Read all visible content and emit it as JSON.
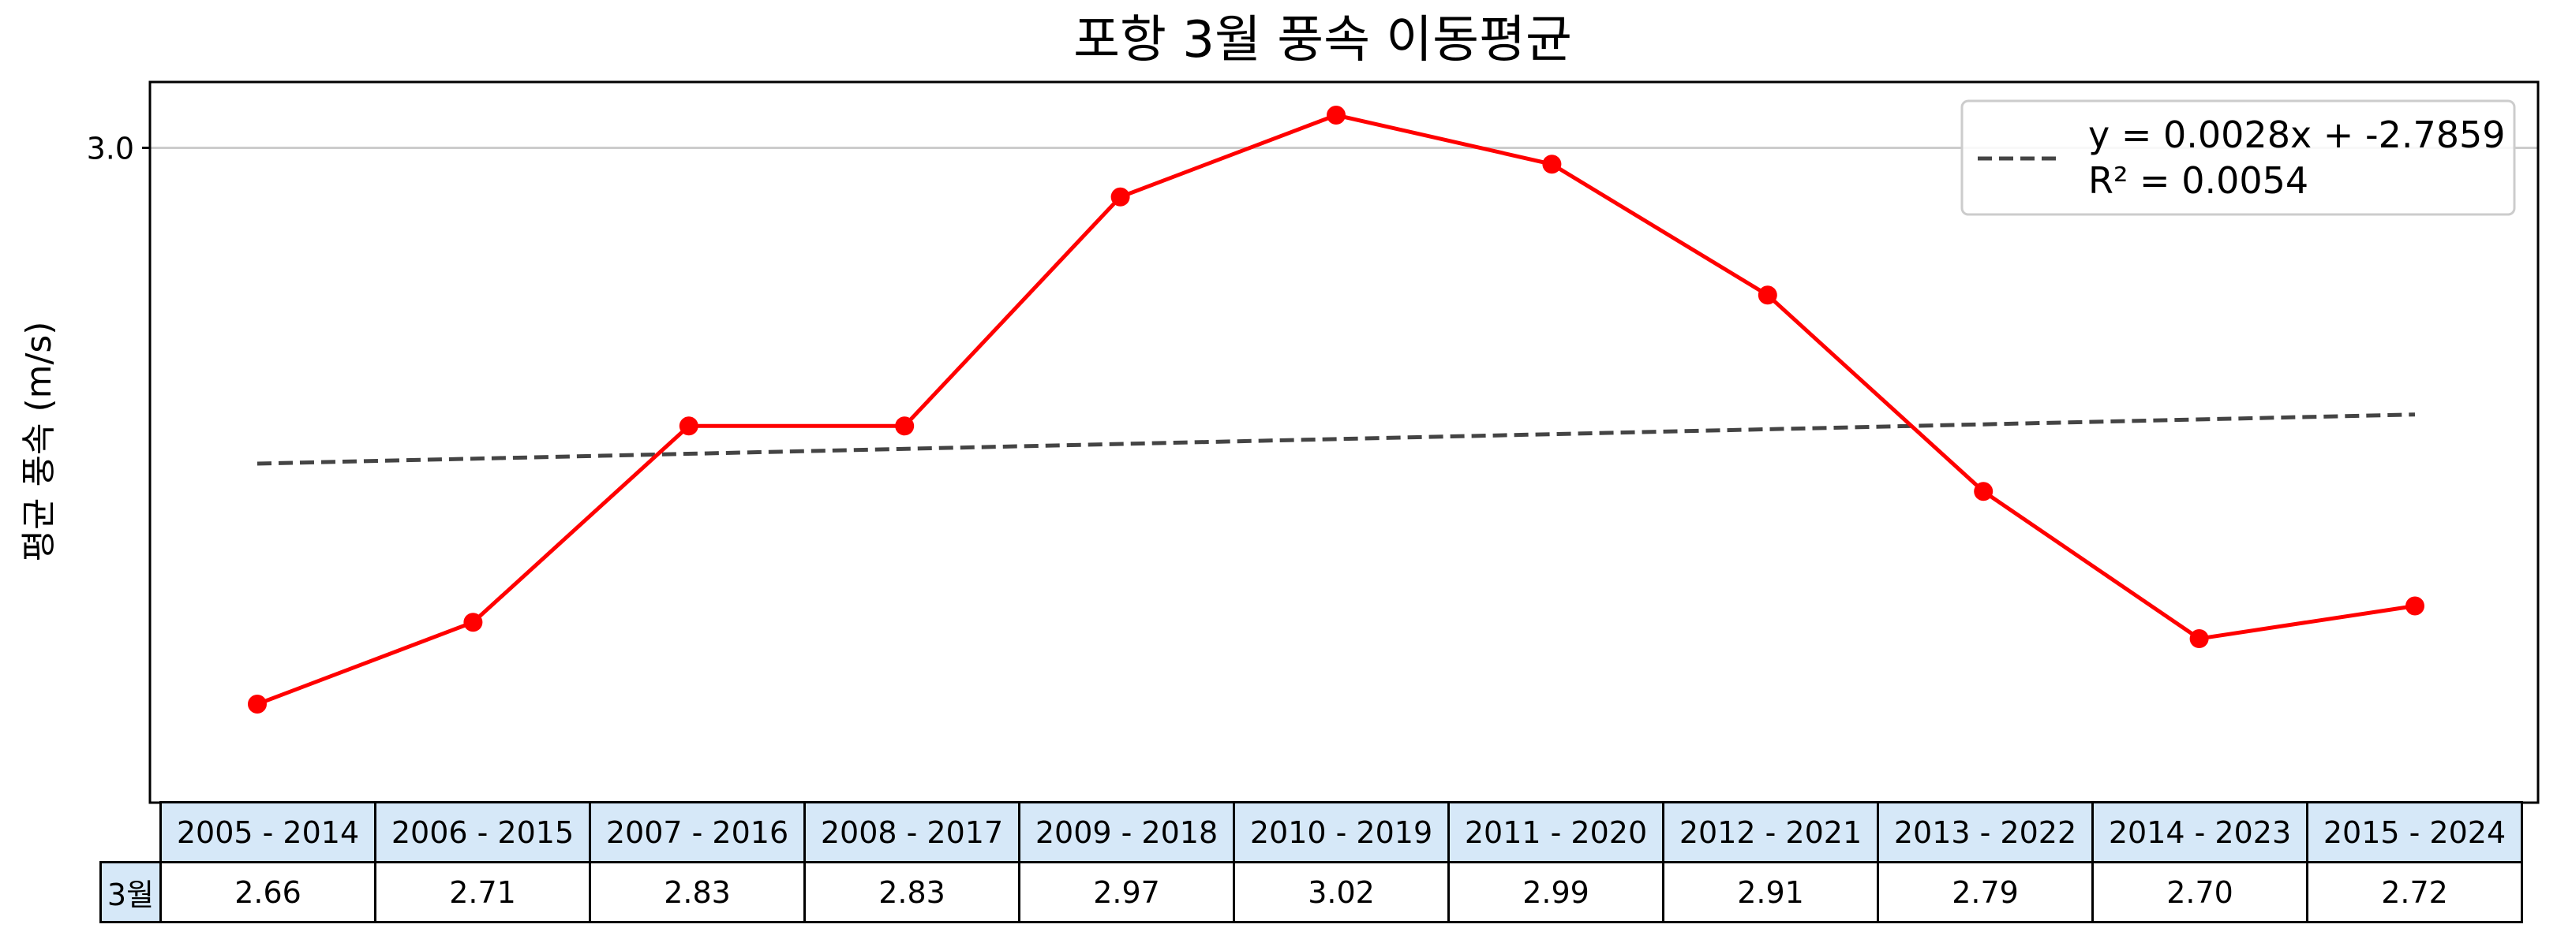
{
  "chart_data": {
    "type": "line",
    "title": "포항 3월 풍속 이동평균",
    "xlabel": "",
    "ylabel": "평균 풍속 (m/s)",
    "categories": [
      "2005 - 2014",
      "2006 - 2015",
      "2007 - 2016",
      "2008 - 2017",
      "2009 - 2018",
      "2010 - 2019",
      "2011 - 2020",
      "2012 - 2021",
      "2013 - 2022",
      "2014 - 2023",
      "2015 - 2024"
    ],
    "series": [
      {
        "values": [
          2.66,
          2.71,
          2.83,
          2.83,
          2.97,
          3.02,
          2.99,
          2.91,
          2.79,
          2.7,
          2.72
        ],
        "color": "#ff0000"
      }
    ],
    "trendline": {
      "start": 2.807,
      "end": 2.837,
      "color": "#444444",
      "label_line1": "y = 0.0028x + -2.7859",
      "label_line2": "R² = 0.0054"
    },
    "ylim": [
      2.62,
      3.02
    ],
    "yticks": [
      "3.0"
    ],
    "ytick_values": [
      3.0
    ],
    "grid": "horizontal",
    "legend_position": "top-right",
    "table": {
      "row_label": "3월",
      "values": [
        "2.66",
        "2.71",
        "2.83",
        "2.83",
        "2.97",
        "3.02",
        "2.99",
        "2.91",
        "2.79",
        "2.70",
        "2.72"
      ]
    }
  }
}
